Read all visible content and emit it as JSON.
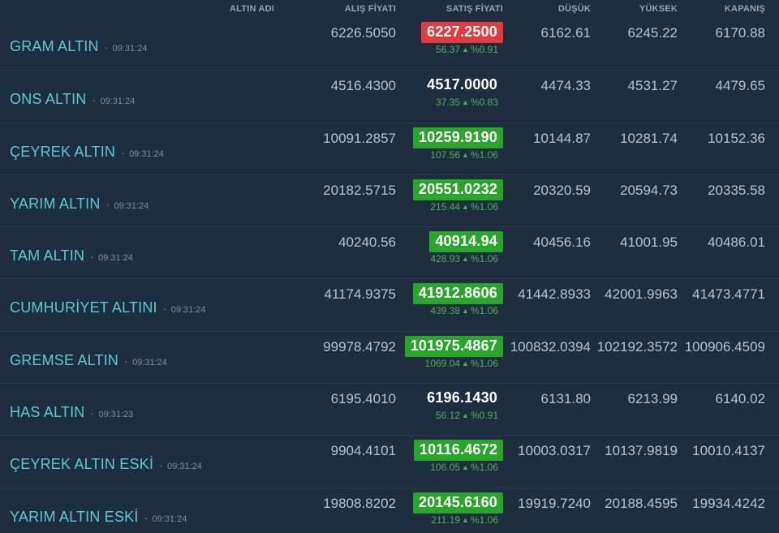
{
  "meta": {
    "up_arrow": "▲",
    "separator_dot": "·"
  },
  "colors": {
    "background": "#1f2e3f",
    "name_accent": "#5ac8d8",
    "sell_up_bg": "#29a52b",
    "sell_down_bg": "#e13b40",
    "change_text": "#4fae58",
    "price_text": "#b5c1ce",
    "header_text": "#93a3b3",
    "bottom_bar": "#141e2a"
  },
  "table": {
    "columns": [
      "ALTIN ADI",
      "ALIŞ FİYATI",
      "SATIŞ FİYATI",
      "DÜŞÜK",
      "YÜKSEK",
      "KAPANIŞ"
    ],
    "rows": [
      {
        "name": "GRAM ALTIN",
        "time": "09:31:24",
        "buy": "6226.5050",
        "sell": "6227.2500",
        "sell_state": "down",
        "change_value": "56.37",
        "change_percent": "%0.91",
        "low": "6162.61",
        "high": "6245.22",
        "close": "6170.88"
      },
      {
        "name": "ONS ALTIN",
        "time": "09:31:24",
        "buy": "4516.4300",
        "sell": "4517.0000",
        "sell_state": "flat",
        "change_value": "37.35",
        "change_percent": "%0.83",
        "low": "4474.33",
        "high": "4531.27",
        "close": "4479.65"
      },
      {
        "name": "ÇEYREK ALTIN",
        "time": "09:31:24",
        "buy": "10091.2857",
        "sell": "10259.9190",
        "sell_state": "up",
        "change_value": "107.56",
        "change_percent": "%1.06",
        "low": "10144.87",
        "high": "10281.74",
        "close": "10152.36"
      },
      {
        "name": "YARIM ALTIN",
        "time": "09:31:24",
        "buy": "20182.5715",
        "sell": "20551.0232",
        "sell_state": "up",
        "change_value": "215.44",
        "change_percent": "%1.06",
        "low": "20320.59",
        "high": "20594.73",
        "close": "20335.58"
      },
      {
        "name": "TAM ALTIN",
        "time": "09:31:24",
        "buy": "40240.56",
        "sell": "40914.94",
        "sell_state": "up",
        "change_value": "428.93",
        "change_percent": "%1.06",
        "low": "40456.16",
        "high": "41001.95",
        "close": "40486.01"
      },
      {
        "name": "CUMHURİYET ALTINI",
        "time": "09:31:24",
        "buy": "41174.9375",
        "sell": "41912.8606",
        "sell_state": "up",
        "change_value": "439.38",
        "change_percent": "%1.06",
        "low": "41442.8933",
        "high": "42001.9963",
        "close": "41473.4771"
      },
      {
        "name": "GREMSE ALTIN",
        "time": "09:31:24",
        "buy": "99978.4792",
        "sell": "101975.4867",
        "sell_state": "up",
        "change_value": "1069.04",
        "change_percent": "%1.06",
        "low": "100832.0394",
        "high": "102192.3572",
        "close": "100906.4509"
      },
      {
        "name": "HAS ALTIN",
        "time": "09:31:23",
        "buy": "6195.4010",
        "sell": "6196.1430",
        "sell_state": "flat",
        "change_value": "56.12",
        "change_percent": "%0.91",
        "low": "6131.80",
        "high": "6213.99",
        "close": "6140.02"
      },
      {
        "name": "ÇEYREK ALTIN ESKİ",
        "time": "09:31:24",
        "buy": "9904.4101",
        "sell": "10116.4672",
        "sell_state": "up",
        "change_value": "106.05",
        "change_percent": "%1.06",
        "low": "10003.0317",
        "high": "10137.9819",
        "close": "10010.4137"
      },
      {
        "name": "YARIM ALTIN ESKİ",
        "time": "09:31:24",
        "buy": "19808.8202",
        "sell": "20145.6160",
        "sell_state": "up",
        "change_value": "211.19",
        "change_percent": "%1.06",
        "low": "19919.7240",
        "high": "20188.4595",
        "close": "19934.4242"
      }
    ]
  }
}
